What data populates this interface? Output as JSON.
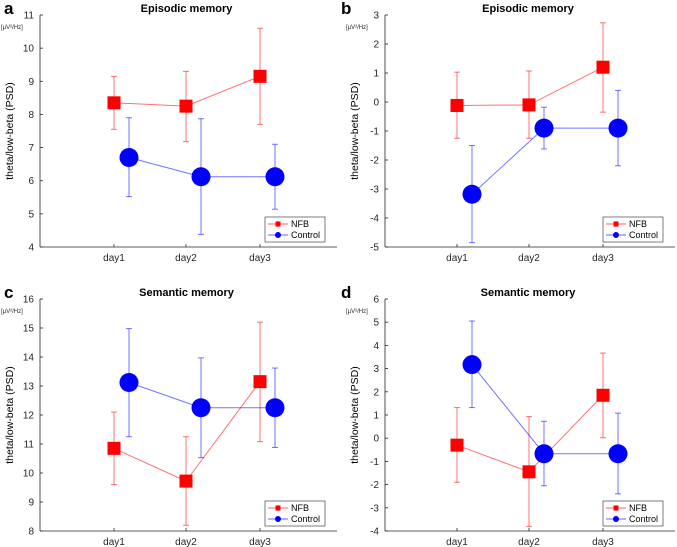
{
  "chart_data": [
    {
      "type": "line",
      "panel_label": "a",
      "title": "Episodic memory",
      "ylabel": "theta/low-beta (PSD)",
      "unit": "[µV²/Hz]",
      "categories": [
        "day1",
        "day2",
        "day3"
      ],
      "ylim": [
        4,
        11
      ],
      "yticks": [
        4,
        5,
        6,
        7,
        8,
        9,
        10,
        11
      ],
      "legend_position": "bottom-right",
      "series": [
        {
          "name": "NFB",
          "color": "#ff0000",
          "marker": "square",
          "values": [
            8.35,
            8.25,
            9.15
          ],
          "err_low": [
            7.55,
            7.18,
            7.7
          ],
          "err_high": [
            9.15,
            9.3,
            10.6
          ]
        },
        {
          "name": "Control",
          "color": "#0000ff",
          "marker": "circle",
          "values": [
            6.7,
            6.12,
            6.12
          ],
          "err_low": [
            5.52,
            4.38,
            5.14
          ],
          "err_high": [
            7.9,
            7.87,
            7.1
          ]
        }
      ]
    },
    {
      "type": "line",
      "panel_label": "b",
      "title": "Episodic memory",
      "ylabel": "theta/low-beta (PSD)",
      "unit": "[µV²/Hz]",
      "categories": [
        "day1",
        "day2",
        "day3"
      ],
      "ylim": [
        -5,
        3
      ],
      "yticks": [
        -5,
        -4,
        -3,
        -2,
        -1,
        0,
        1,
        2,
        3
      ],
      "legend_position": "bottom-right",
      "series": [
        {
          "name": "NFB",
          "color": "#ff0000",
          "marker": "square",
          "values": [
            -0.12,
            -0.1,
            1.2
          ],
          "err_low": [
            -1.25,
            -1.25,
            -0.35
          ],
          "err_high": [
            1.03,
            1.07,
            2.73
          ]
        },
        {
          "name": "Control",
          "color": "#0000ff",
          "marker": "circle",
          "values": [
            -3.18,
            -0.9,
            -0.9
          ],
          "err_low": [
            -4.85,
            -1.62,
            -2.2
          ],
          "err_high": [
            -1.5,
            -0.18,
            0.4
          ]
        }
      ]
    },
    {
      "type": "line",
      "panel_label": "c",
      "title": "Semantic memory",
      "ylabel": "theta/low-beta (PSD)",
      "unit": "[µV²/Hz]",
      "categories": [
        "day1",
        "day2",
        "day3"
      ],
      "ylim": [
        8,
        16
      ],
      "yticks": [
        8,
        9,
        10,
        11,
        12,
        13,
        14,
        15,
        16
      ],
      "legend_position": "bottom-right",
      "series": [
        {
          "name": "NFB",
          "color": "#ff0000",
          "marker": "square",
          "values": [
            10.85,
            9.72,
            13.15
          ],
          "err_low": [
            9.6,
            8.2,
            11.08
          ],
          "err_high": [
            12.1,
            11.25,
            15.2
          ]
        },
        {
          "name": "Control",
          "color": "#0000ff",
          "marker": "circle",
          "values": [
            13.12,
            12.25,
            12.25
          ],
          "err_low": [
            11.25,
            10.53,
            10.88
          ],
          "err_high": [
            14.98,
            13.97,
            13.62
          ]
        }
      ]
    },
    {
      "type": "line",
      "panel_label": "d",
      "title": "Semantic memory",
      "ylabel": "theta/low-beta (PSD)",
      "unit": "[µV²/Hz]",
      "categories": [
        "day1",
        "day2",
        "day3"
      ],
      "ylim": [
        -4,
        6
      ],
      "yticks": [
        -4,
        -3,
        -2,
        -1,
        0,
        1,
        2,
        3,
        4,
        5,
        6
      ],
      "legend_position": "bottom-right",
      "series": [
        {
          "name": "NFB",
          "color": "#ff0000",
          "marker": "square",
          "values": [
            -0.3,
            -1.45,
            1.85
          ],
          "err_low": [
            -1.9,
            -3.8,
            0.02
          ],
          "err_high": [
            1.32,
            0.93,
            3.67
          ]
        },
        {
          "name": "Control",
          "color": "#0000ff",
          "marker": "circle",
          "values": [
            3.17,
            -0.67,
            -0.67
          ],
          "err_low": [
            1.32,
            -2.05,
            -2.4
          ],
          "err_high": [
            5.05,
            0.73,
            1.08
          ]
        }
      ]
    }
  ]
}
